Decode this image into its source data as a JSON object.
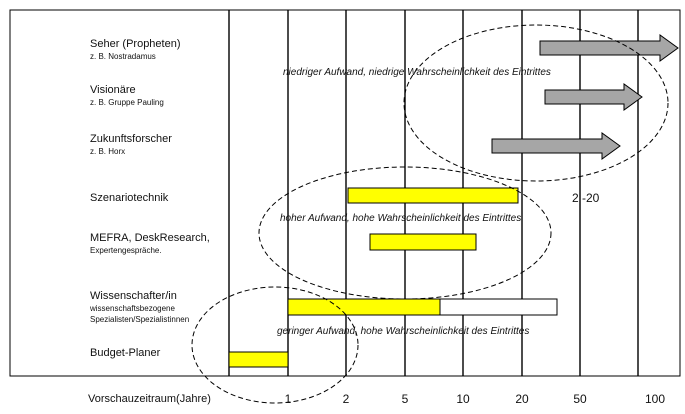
{
  "rows": [
    {
      "name": "Seher (Propheten)",
      "example": "z. B. Nostradamus"
    },
    {
      "name": "Visionäre",
      "example": "z. B. Gruppe Pauling"
    },
    {
      "name": "Zukunftsforscher",
      "example": "z. B. Horx"
    },
    {
      "name": "Szenariotechnik",
      "example": ""
    },
    {
      "name": "MEFRA, DeskResearch,",
      "example": "Expertengespräche."
    },
    {
      "name": "Wissenschafter/in",
      "example": "wissenschaftsbezogene Spezialisten/Spezialistinnen"
    },
    {
      "name": "Budget-Planer",
      "example": ""
    }
  ],
  "annotations": {
    "top": "niedriger Aufwand, niedrige Wahrscheinlichkeit des Eintrittes",
    "middle": "hoher Aufwand, hohe Wahrscheinlichkeit des Eintrittes",
    "bottom": "geringer Aufwand, hohe Wahrscheinlichkeit des Eintrittes"
  },
  "range_label": "2 -20",
  "axis": {
    "title": "Vorschauzeitraum(Jahre)",
    "ticks": [
      "1",
      "2",
      "5",
      "10",
      "20",
      "50",
      "100"
    ]
  },
  "colors": {
    "arrow": "#a6a6a6",
    "bar_highlight": "#ffff00",
    "bar_plain": "#ffffff",
    "outline": "#000000"
  }
}
